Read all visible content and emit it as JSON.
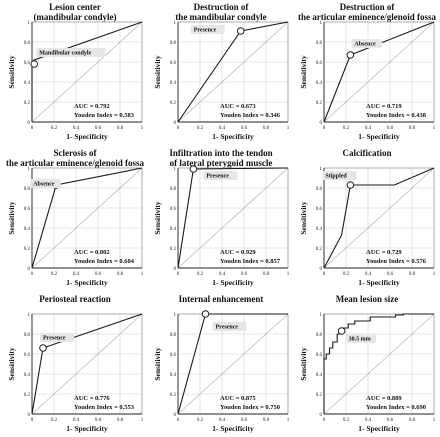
{
  "figure": {
    "panels": [
      {
        "title_lines": [
          "Lesion center",
          "(mandibular condyle)"
        ],
        "chart_data": {
          "type": "line",
          "xlabel": "1- Specificity",
          "ylabel": "Sensitivity",
          "xlim": [
            0,
            1
          ],
          "ylim": [
            0,
            1
          ],
          "x_ticks": [
            "0",
            "0.2",
            "0.4",
            "0.6",
            "0.8",
            "1"
          ],
          "y_ticks": [
            "0",
            "0.2",
            "0.4",
            "0.6",
            "0.8",
            "1"
          ],
          "series": [
            {
              "x": [
                0,
                0,
                0.02,
                1
              ],
              "y": [
                0,
                0.58,
                0.62,
                1
              ]
            }
          ],
          "reference_line": {
            "x": [
              0,
              1
            ],
            "y": [
              0,
              1
            ]
          },
          "cutoff_point": {
            "x": 0.02,
            "y": 0.58,
            "label": "Mandibular condyle"
          },
          "auc_text": "AUC = 0.792",
          "youden_text": "Youden Index = 0.583"
        }
      },
      {
        "title_lines": [
          "Destruction of",
          "the mandibular condyle"
        ],
        "chart_data": {
          "type": "line",
          "xlabel": "1- Specificity",
          "ylabel": "Sensitivity",
          "xlim": [
            0,
            1
          ],
          "ylim": [
            0,
            1
          ],
          "x_ticks": [
            "0",
            "0.2",
            "0.4",
            "0.6",
            "0.8",
            "1"
          ],
          "y_ticks": [
            "0",
            "0.2",
            "0.4",
            "0.6",
            "0.8",
            "1"
          ],
          "series": [
            {
              "x": [
                0,
                0.57,
                1
              ],
              "y": [
                0,
                0.91,
                1
              ]
            }
          ],
          "reference_line": {
            "x": [
              0,
              1
            ],
            "y": [
              0,
              1
            ]
          },
          "cutoff_point": {
            "x": 0.57,
            "y": 0.91,
            "label": "Presence"
          },
          "auc_text": "AUC = 0.673",
          "youden_text": "Youden Index = 0.346"
        }
      },
      {
        "title_lines": [
          "Destruction of",
          "the articular eminence/glenoid fossa"
        ],
        "chart_data": {
          "type": "line",
          "xlabel": "1- Specificity",
          "ylabel": "Sensitivity",
          "xlim": [
            0,
            1
          ],
          "ylim": [
            0,
            1
          ],
          "x_ticks": [
            "0",
            "0.2",
            "0.4",
            "0.6",
            "0.8",
            "1"
          ],
          "y_ticks": [
            "0",
            "0.2",
            "0.4",
            "0.6",
            "0.8",
            "1"
          ],
          "series": [
            {
              "x": [
                0,
                0.24,
                1
              ],
              "y": [
                0,
                0.67,
                1
              ]
            }
          ],
          "reference_line": {
            "x": [
              0,
              1
            ],
            "y": [
              0,
              1
            ]
          },
          "cutoff_point": {
            "x": 0.24,
            "y": 0.67,
            "label": "Absence"
          },
          "auc_text": "AUC = 0.719",
          "youden_text": "Youden Index = 0.438"
        }
      },
      {
        "title_lines": [
          "Sclerosis of",
          "the articular eminence/glenoid fossa"
        ],
        "chart_data": {
          "type": "line",
          "xlabel": "1- Specificity",
          "ylabel": "Sensitivity",
          "xlim": [
            0,
            1
          ],
          "ylim": [
            0,
            1
          ],
          "x_ticks": [
            "0",
            "0.2",
            "0.4",
            "0.6",
            "0.8",
            "1"
          ],
          "y_ticks": [
            "0",
            "0.2",
            "0.4",
            "0.6",
            "0.8",
            "1"
          ],
          "series": [
            {
              "x": [
                0,
                0.22,
                1
              ],
              "y": [
                0,
                0.83,
                1
              ]
            }
          ],
          "reference_line": {
            "x": [
              0,
              1
            ],
            "y": [
              0,
              1
            ]
          },
          "cutoff_point": {
            "x": 0.22,
            "y": 0.83,
            "label": "Absence"
          },
          "auc_text": "AUC = 0.802",
          "youden_text": "Youden Index = 0.604"
        }
      },
      {
        "title_lines": [
          "Infiltration into the tendon",
          "of lateral pterygoid muscle"
        ],
        "chart_data": {
          "type": "line",
          "xlabel": "1- Specificity",
          "ylabel": "Sensitivity",
          "xlim": [
            0,
            1
          ],
          "ylim": [
            0,
            1
          ],
          "x_ticks": [
            "0",
            "0.2",
            "0.4",
            "0.6",
            "0.8",
            "1"
          ],
          "y_ticks": [
            "0",
            "0.2",
            "0.4",
            "0.6",
            "0.8",
            "1"
          ],
          "series": [
            {
              "x": [
                0,
                0.14,
                1
              ],
              "y": [
                0,
                0.99,
                1
              ]
            }
          ],
          "reference_line": {
            "x": [
              0,
              1
            ],
            "y": [
              0,
              1
            ]
          },
          "cutoff_point": {
            "x": 0.14,
            "y": 0.99,
            "label": "Presence"
          },
          "auc_text": "AUC = 0.929",
          "youden_text": "Youden Index = 0.857"
        }
      },
      {
        "title_lines": [
          "Calcification"
        ],
        "chart_data": {
          "type": "line",
          "xlabel": "1- Specificity",
          "ylabel": "Sensitivity",
          "xlim": [
            0,
            1
          ],
          "ylim": [
            0,
            1
          ],
          "x_ticks": [
            "0",
            "0.2",
            "0.4",
            "0.6",
            "0.8",
            "1"
          ],
          "y_ticks": [
            "0",
            "0.2",
            "0.4",
            "0.6",
            "0.8",
            "1"
          ],
          "series": [
            {
              "x": [
                0,
                0.16,
                0.24,
                0.64,
                1
              ],
              "y": [
                0,
                0.33,
                0.83,
                0.83,
                1
              ]
            }
          ],
          "reference_line": {
            "x": [
              0,
              1
            ],
            "y": [
              0,
              1
            ]
          },
          "cutoff_point": {
            "x": 0.24,
            "y": 0.83,
            "label": "Stippled"
          },
          "auc_text": "AUC = 0.729",
          "youden_text": "Youden Index = 0.576"
        }
      },
      {
        "title_lines": [
          "Periosteal reaction"
        ],
        "chart_data": {
          "type": "line",
          "xlabel": "1- Specificity",
          "ylabel": "Sensitivity",
          "xlim": [
            0,
            1
          ],
          "ylim": [
            0,
            1
          ],
          "x_ticks": [
            "0",
            "0.2",
            "0.4",
            "0.6",
            "0.8",
            "1"
          ],
          "y_ticks": [
            "0",
            "0.2",
            "0.4",
            "0.6",
            "0.8",
            "1"
          ],
          "series": [
            {
              "x": [
                0,
                0.1,
                1
              ],
              "y": [
                0,
                0.66,
                1
              ]
            }
          ],
          "reference_line": {
            "x": [
              0,
              1
            ],
            "y": [
              0,
              1
            ]
          },
          "cutoff_point": {
            "x": 0.1,
            "y": 0.66,
            "label": "Presence"
          },
          "auc_text": "AUC = 0.776",
          "youden_text": "Youden Index = 0.553"
        }
      },
      {
        "title_lines": [
          "Internal enhancement"
        ],
        "chart_data": {
          "type": "line",
          "xlabel": "1- Specificity",
          "ylabel": "Sensitivity",
          "xlim": [
            0,
            1
          ],
          "ylim": [
            0,
            1
          ],
          "x_ticks": [
            "0",
            "0.2",
            "0.4",
            "0.6",
            "0.8",
            "1"
          ],
          "y_ticks": [
            "0",
            "0.2",
            "0.4",
            "0.6",
            "0.8",
            "1"
          ],
          "series": [
            {
              "x": [
                0,
                0.25,
                1
              ],
              "y": [
                0,
                1,
                1
              ]
            }
          ],
          "reference_line": {
            "x": [
              0,
              1
            ],
            "y": [
              0,
              1
            ]
          },
          "cutoff_point": {
            "x": 0.25,
            "y": 1,
            "label": "Presence"
          },
          "auc_text": "AUC = 0.875",
          "youden_text": "Youden Index = 0.750"
        }
      },
      {
        "title_lines": [
          "Mean lesion size"
        ],
        "chart_data": {
          "type": "line",
          "xlabel": "1- Specificity",
          "ylabel": "Sensitivity",
          "xlim": [
            0,
            1
          ],
          "ylim": [
            0,
            1
          ],
          "x_ticks": [
            "0",
            "0.2",
            "0.4",
            "0.6",
            "0.8",
            "1"
          ],
          "y_ticks": [
            "0",
            "0.2",
            "0.4",
            "0.6",
            "0.8",
            "1"
          ],
          "series": [
            {
              "x": [
                0,
                0,
                0.02,
                0.02,
                0.05,
                0.05,
                0.08,
                0.08,
                0.12,
                0.12,
                0.16,
                0.16,
                0.22,
                0.22,
                0.28,
                0.28,
                0.42,
                0.42,
                0.65,
                0.65,
                0.72,
                0.72,
                1.0,
                1
              ],
              "y": [
                0,
                0.55,
                0.55,
                0.6,
                0.6,
                0.66,
                0.66,
                0.72,
                0.72,
                0.8,
                0.8,
                0.86,
                0.86,
                0.9,
                0.9,
                0.93,
                0.93,
                0.97,
                0.97,
                0.99,
                0.99,
                1.0,
                1.0,
                1
              ]
            }
          ],
          "reference_line": {
            "x": [
              0,
              1
            ],
            "y": [
              0,
              1
            ]
          },
          "cutoff_point": {
            "x": 0.16,
            "y": 0.83,
            "label": "30.5 mm"
          },
          "auc_text": "AUC = 0.889",
          "youden_text": "Youden Index = 0.690"
        }
      }
    ]
  }
}
